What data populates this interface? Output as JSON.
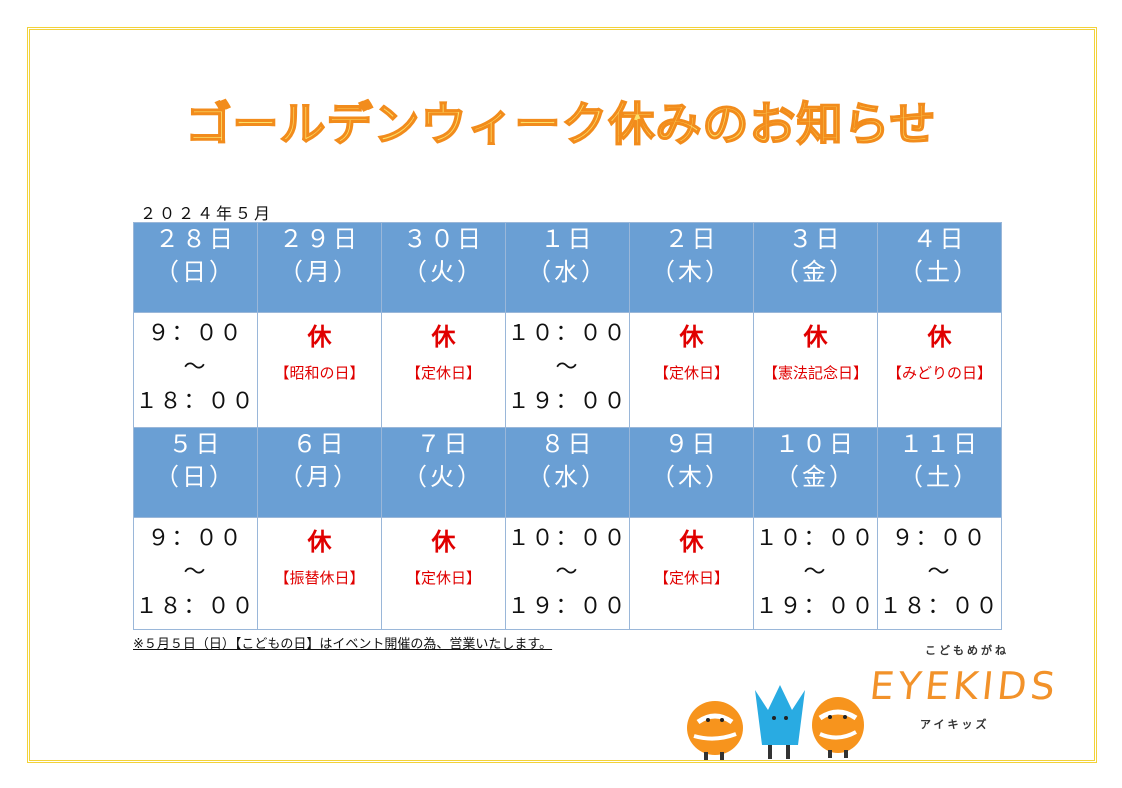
{
  "title": "ゴールデンウィーク休みのお知らせ",
  "month_label": "２０２４年５月",
  "week1": [
    {
      "day": "２８日",
      "weekday": "（日）",
      "type": "open",
      "open": "９：００",
      "sep": "～",
      "close": "１８：００"
    },
    {
      "day": "２９日",
      "weekday": "（月）",
      "type": "closed",
      "mark": "休",
      "reason": "【昭和の日】"
    },
    {
      "day": "３０日",
      "weekday": "（火）",
      "type": "closed",
      "mark": "休",
      "reason": "【定休日】"
    },
    {
      "day": "１日",
      "weekday": "（水）",
      "type": "open",
      "open": "１０：００",
      "sep": "～",
      "close": "１９：００"
    },
    {
      "day": "２日",
      "weekday": "（木）",
      "type": "closed",
      "mark": "休",
      "reason": "【定休日】"
    },
    {
      "day": "３日",
      "weekday": "（金）",
      "type": "closed",
      "mark": "休",
      "reason": "【憲法記念日】"
    },
    {
      "day": "４日",
      "weekday": "（土）",
      "type": "closed",
      "mark": "休",
      "reason": "【みどりの日】"
    }
  ],
  "week2": [
    {
      "day": "５日",
      "weekday": "（日）",
      "type": "open",
      "open": "９：００",
      "sep": "～",
      "close": "１８：００"
    },
    {
      "day": "６日",
      "weekday": "（月）",
      "type": "closed",
      "mark": "休",
      "reason": "【振替休日】"
    },
    {
      "day": "７日",
      "weekday": "（火）",
      "type": "closed",
      "mark": "休",
      "reason": "【定休日】"
    },
    {
      "day": "８日",
      "weekday": "（水）",
      "type": "open",
      "open": "１０：００",
      "sep": "～",
      "close": "１９：００"
    },
    {
      "day": "９日",
      "weekday": "（木）",
      "type": "closed",
      "mark": "休",
      "reason": "【定休日】"
    },
    {
      "day": "１０日",
      "weekday": "（金）",
      "type": "open",
      "open": "１０：００",
      "sep": "～",
      "close": "１９：００"
    },
    {
      "day": "１１日",
      "weekday": "（土）",
      "type": "open",
      "open": "９：００",
      "sep": "～",
      "close": "１８：００"
    }
  ],
  "note": "※５月５日（日）【こどもの日】はイベント開催の為、営業いたします。",
  "logo": {
    "top": "こどもめがね",
    "main": "EYEKIDS",
    "bottom": "アイキッズ",
    "orange": "#f7941d",
    "blue": "#29abe2"
  },
  "colors": {
    "header_bg": "#6a9fd4",
    "closed": "#e00000",
    "title_fill": "#fbe06a",
    "title_stroke": "#f28c1c",
    "frame": "#f2d23a"
  }
}
